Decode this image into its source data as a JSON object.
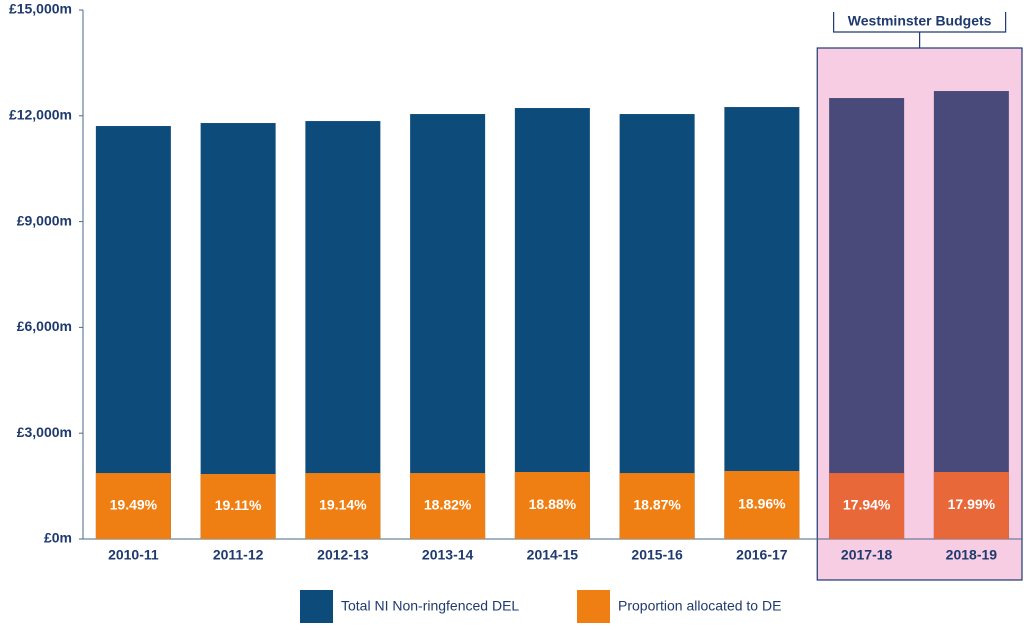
{
  "chart_data": {
    "type": "bar",
    "categories": [
      "2010-11",
      "2011-12",
      "2012-13",
      "2013-14",
      "2014-15",
      "2015-16",
      "2016-17",
      "2017-18",
      "2018-19"
    ],
    "series": [
      {
        "name": "Total NI Non-ringfenced DEL",
        "color": "#0d4c7a",
        "values": [
          11710,
          11795,
          11851,
          12050,
          12220,
          12050,
          12248,
          12504,
          12702
        ]
      },
      {
        "name": "Proportion allocated to DE",
        "color": "#f07f13",
        "values": [
          1870,
          1843,
          1870,
          1870,
          1900,
          1870,
          1928,
          1870,
          1900
        ],
        "annotations": [
          "19.49%",
          "19.11%",
          "19.14%",
          "18.82%",
          "18.88%",
          "18.87%",
          "18.96%",
          "17.94%",
          "17.99%"
        ]
      }
    ],
    "ylim": [
      0,
      15000
    ],
    "yticks": [
      {
        "value": 0,
        "label": "£0m"
      },
      {
        "value": 3000,
        "label": "£3,000m"
      },
      {
        "value": 6000,
        "label": "£6,000m"
      },
      {
        "value": 9000,
        "label": "£9,000m"
      },
      {
        "value": 12000,
        "label": "£12,000m"
      },
      {
        "value": 15000,
        "label": "£15,000m"
      }
    ],
    "highlight": {
      "label": "Westminster Budgets",
      "first_index": 7,
      "background": "#f6cde3",
      "border": "#1f3a6e",
      "colors": [
        "#4a4a7a",
        "#e8683a"
      ]
    },
    "legend": "bottom"
  }
}
